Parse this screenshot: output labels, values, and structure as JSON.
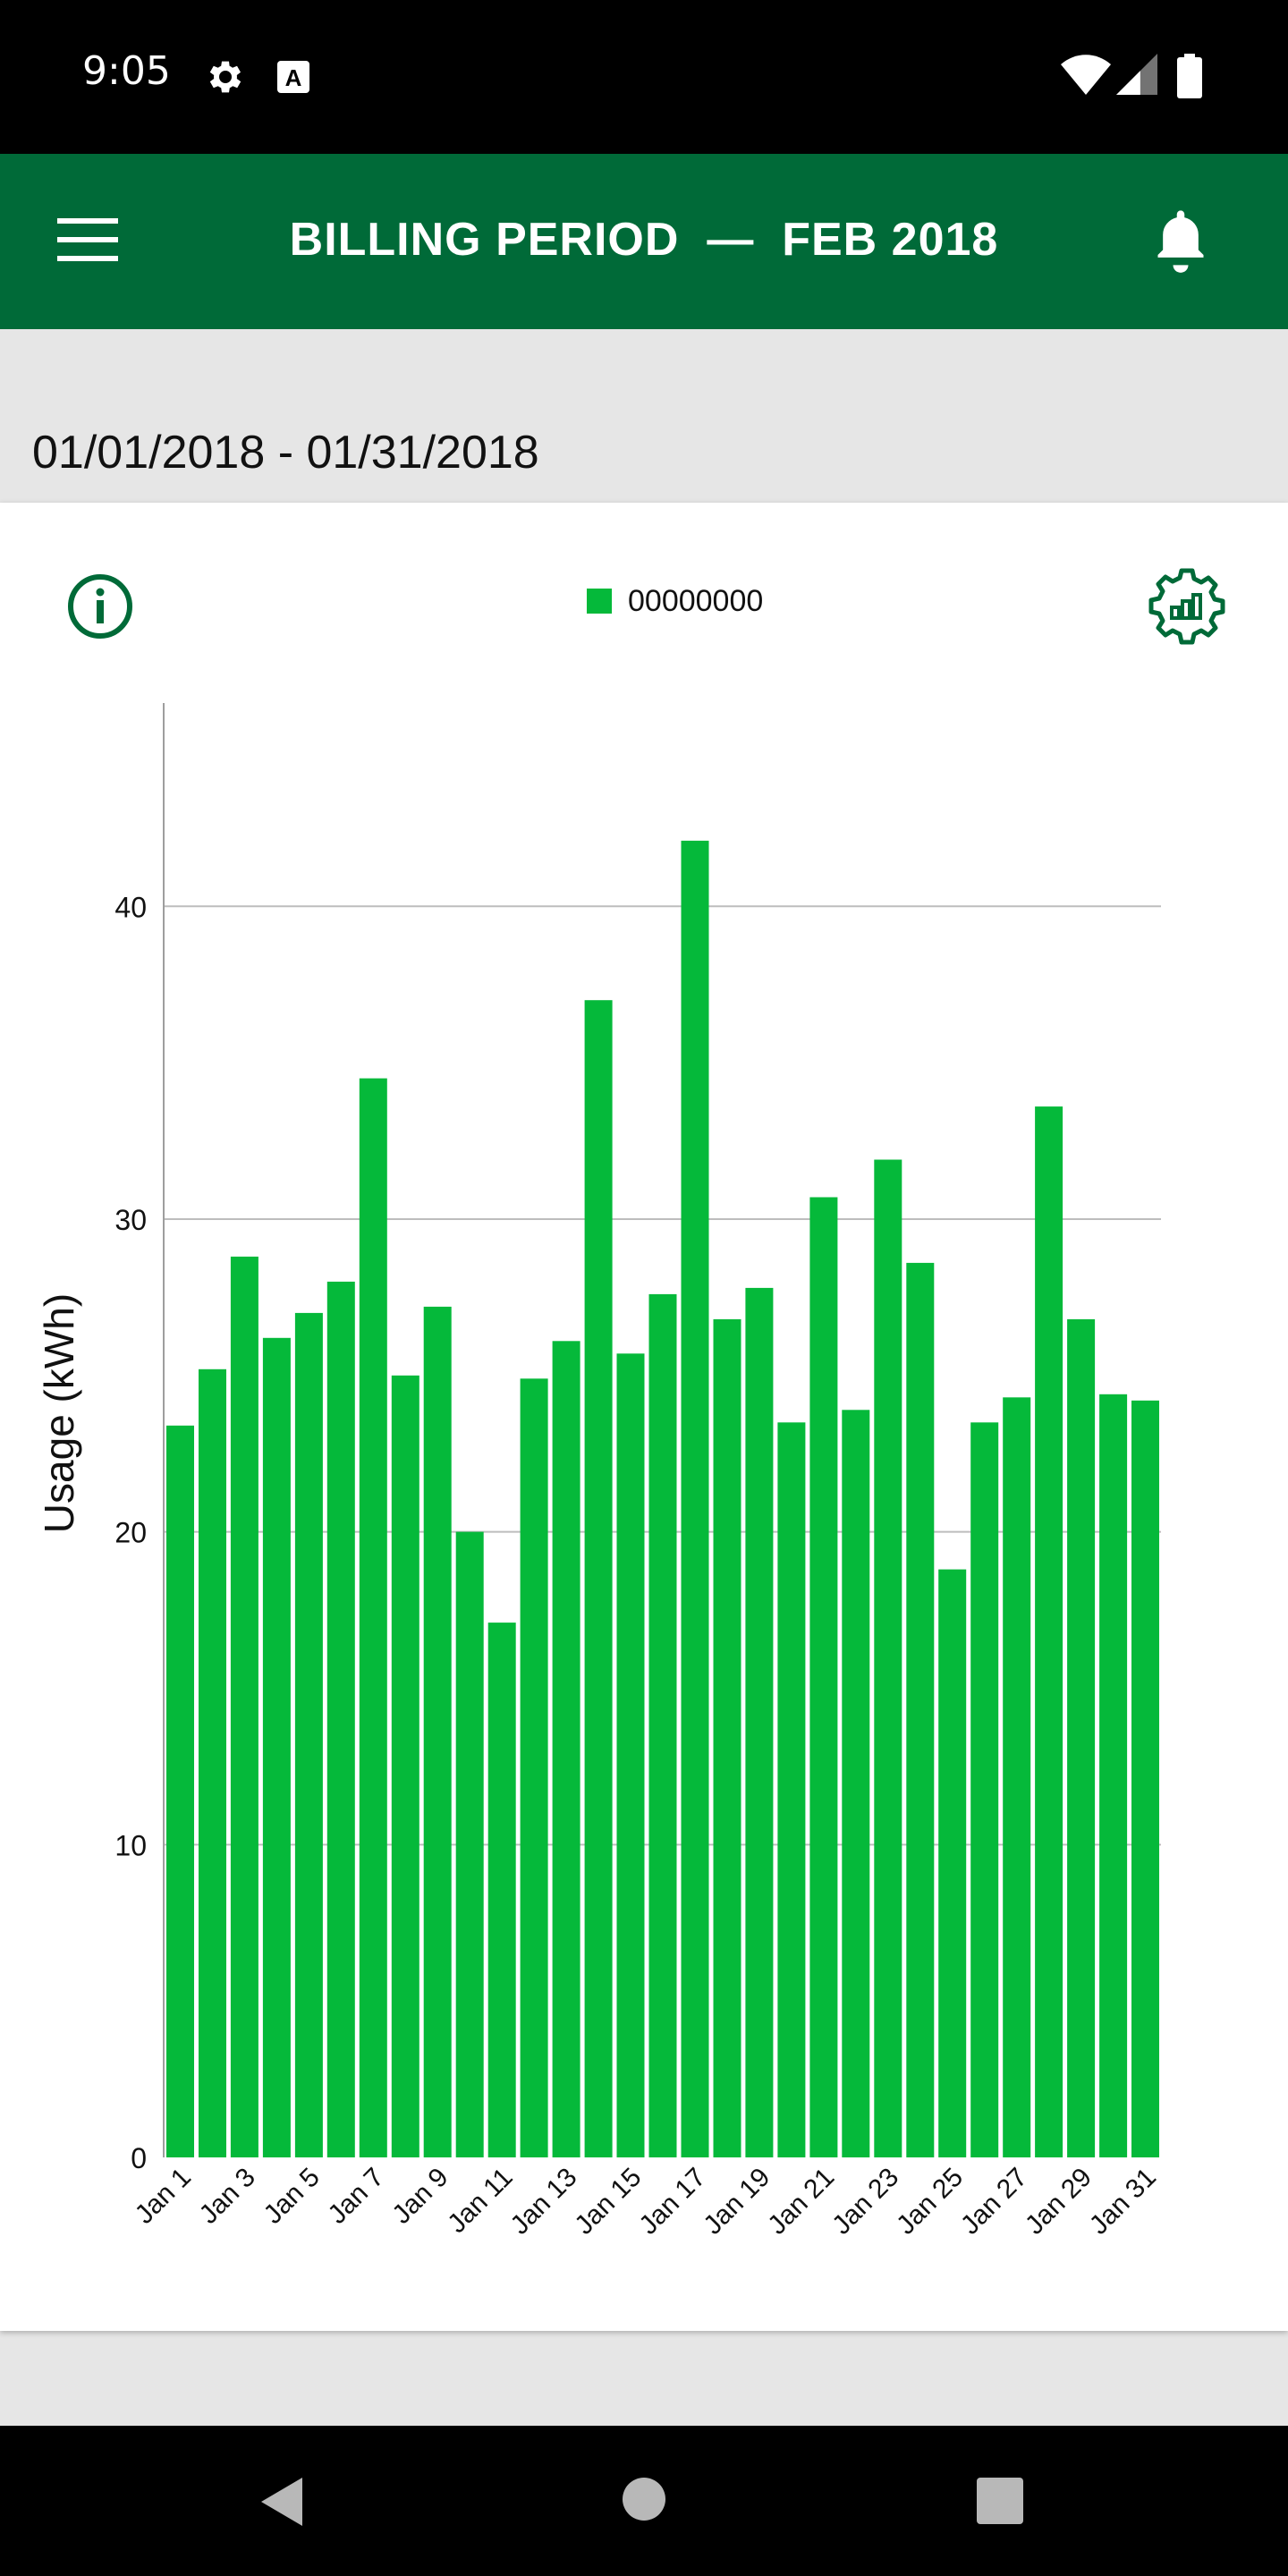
{
  "status_bar": {
    "time": "9:05",
    "icons": [
      "gear-icon",
      "font-a-icon",
      "wifi-icon",
      "signal-icon",
      "battery-icon"
    ]
  },
  "app_bar": {
    "title": "BILLING PERIOD  —  FEB 2018",
    "menu_icon": "hamburger-menu-icon",
    "notification_icon": "bell-icon",
    "background_color": "#006a38"
  },
  "date_range": "01/01/2018 - 01/31/2018",
  "card": {
    "info_icon": "info-icon",
    "settings_icon": "chart-settings-gear-icon"
  },
  "chart_data": {
    "type": "bar",
    "title": "",
    "xlabel": "",
    "ylabel": "Usage (kWh)",
    "ylim": [
      0,
      46.5
    ],
    "yticks": [
      0,
      10,
      20,
      30,
      40
    ],
    "grid": true,
    "legend_position": "top-center",
    "bar_color": "#05b93a",
    "categories": [
      "Jan 1",
      "Jan 2",
      "Jan 3",
      "Jan 4",
      "Jan 5",
      "Jan 6",
      "Jan 7",
      "Jan 8",
      "Jan 9",
      "Jan 10",
      "Jan 11",
      "Jan 12",
      "Jan 13",
      "Jan 14",
      "Jan 15",
      "Jan 16",
      "Jan 17",
      "Jan 18",
      "Jan 19",
      "Jan 20",
      "Jan 21",
      "Jan 22",
      "Jan 23",
      "Jan 24",
      "Jan 25",
      "Jan 26",
      "Jan 27",
      "Jan 28",
      "Jan 29",
      "Jan 30",
      "Jan 31"
    ],
    "tick_labels": [
      "Jan 1",
      "",
      "Jan 3",
      "",
      "Jan 5",
      "",
      "Jan 7",
      "",
      "Jan 9",
      "",
      "Jan 11",
      "",
      "Jan 13",
      "",
      "Jan 15",
      "",
      "Jan 17",
      "",
      "Jan 19",
      "",
      "Jan 21",
      "",
      "Jan 23",
      "",
      "Jan 25",
      "",
      "Jan 27",
      "",
      "Jan 29",
      "",
      "Jan 31"
    ],
    "series": [
      {
        "name": "00000000",
        "values": [
          23.4,
          25.2,
          28.8,
          26.2,
          27.0,
          28.0,
          34.5,
          25.0,
          27.2,
          20.0,
          17.1,
          24.9,
          26.1,
          37.0,
          25.7,
          27.6,
          42.1,
          26.8,
          27.8,
          23.5,
          30.7,
          23.9,
          31.9,
          28.6,
          18.8,
          23.5,
          24.3,
          33.6,
          26.8,
          24.4,
          24.2
        ]
      }
    ]
  },
  "nav_bar": {
    "back_icon": "back-triangle-icon",
    "home_icon": "home-circle-icon",
    "recents_icon": "recents-square-icon"
  }
}
